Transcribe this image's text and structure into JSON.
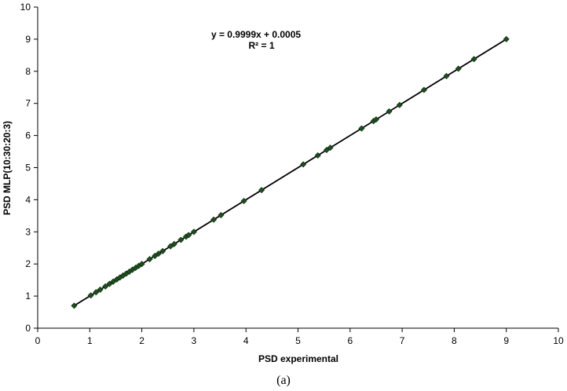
{
  "chart_data": {
    "type": "scatter",
    "xlabel": "PSD experimental",
    "ylabel": "PSD MLP(10:30:20:3)",
    "xlim": [
      0,
      10
    ],
    "ylim": [
      0,
      10
    ],
    "xticks": [
      "0",
      "1",
      "2",
      "3",
      "4",
      "5",
      "6",
      "7",
      "8",
      "9",
      "10"
    ],
    "yticks": [
      "0",
      "1",
      "2",
      "3",
      "4",
      "5",
      "6",
      "7",
      "8",
      "9",
      "10"
    ],
    "grid": false,
    "marker_color": "#1e4d1e",
    "line_color": "#000000",
    "trendline": {
      "slope": 0.9999,
      "intercept": 0.0005,
      "equation": "y = 0.9999x + 0.0005",
      "r2": "R² = 1"
    },
    "series": [
      {
        "points": [
          [
            0.7,
            0.7
          ],
          [
            1.02,
            1.02
          ],
          [
            1.12,
            1.12
          ],
          [
            1.2,
            1.2
          ],
          [
            1.3,
            1.3
          ],
          [
            1.38,
            1.38
          ],
          [
            1.45,
            1.45
          ],
          [
            1.52,
            1.52
          ],
          [
            1.58,
            1.58
          ],
          [
            1.64,
            1.64
          ],
          [
            1.7,
            1.7
          ],
          [
            1.76,
            1.76
          ],
          [
            1.82,
            1.82
          ],
          [
            1.88,
            1.88
          ],
          [
            1.94,
            1.94
          ],
          [
            2.0,
            2.0
          ],
          [
            2.15,
            2.15
          ],
          [
            2.25,
            2.25
          ],
          [
            2.32,
            2.32
          ],
          [
            2.4,
            2.4
          ],
          [
            2.55,
            2.55
          ],
          [
            2.62,
            2.62
          ],
          [
            2.75,
            2.75
          ],
          [
            2.85,
            2.85
          ],
          [
            2.9,
            2.9
          ],
          [
            3.0,
            3.0
          ],
          [
            3.38,
            3.38
          ],
          [
            3.52,
            3.52
          ],
          [
            3.96,
            3.96
          ],
          [
            4.3,
            4.3
          ],
          [
            5.1,
            5.1
          ],
          [
            5.38,
            5.38
          ],
          [
            5.55,
            5.55
          ],
          [
            5.62,
            5.62
          ],
          [
            6.22,
            6.22
          ],
          [
            6.45,
            6.45
          ],
          [
            6.5,
            6.5
          ],
          [
            6.75,
            6.75
          ],
          [
            6.95,
            6.95
          ],
          [
            7.42,
            7.42
          ],
          [
            7.85,
            7.85
          ],
          [
            8.08,
            8.08
          ],
          [
            8.38,
            8.38
          ],
          [
            9.0,
            9.0
          ]
        ]
      }
    ]
  },
  "caption": "(a)"
}
